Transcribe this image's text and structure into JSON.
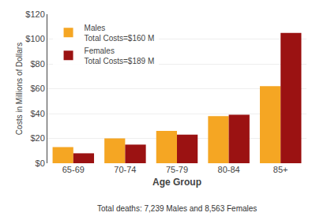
{
  "chart_data": {
    "type": "bar",
    "categories": [
      "65-69",
      "70-74",
      "75-79",
      "80-84",
      "85+"
    ],
    "series": [
      {
        "name": "Males",
        "color": "#F5A623",
        "values": [
          13,
          20,
          26,
          38,
          62
        ]
      },
      {
        "name": "Females",
        "color": "#9B1212",
        "values": [
          8,
          15,
          23,
          39,
          105
        ]
      }
    ],
    "xlabel": "Age Group",
    "ylabel": "Costs in Millions of Dollars",
    "ylim": [
      0,
      120
    ],
    "yticks": [
      {
        "value": 0,
        "label": "$0"
      },
      {
        "value": 20,
        "label": "$20"
      },
      {
        "value": 40,
        "label": "$40"
      },
      {
        "value": 60,
        "label": "$60"
      },
      {
        "value": 80,
        "label": "$80"
      },
      {
        "value": 100,
        "label": "$100"
      },
      {
        "value": 120,
        "label": "$120"
      }
    ],
    "grid": true,
    "legend": "upper left",
    "annotations": [
      "Total Costs=$160 M",
      "Total Costs=$189 M",
      "Total deaths: 7,239 Males and 8,563 Females"
    ]
  }
}
